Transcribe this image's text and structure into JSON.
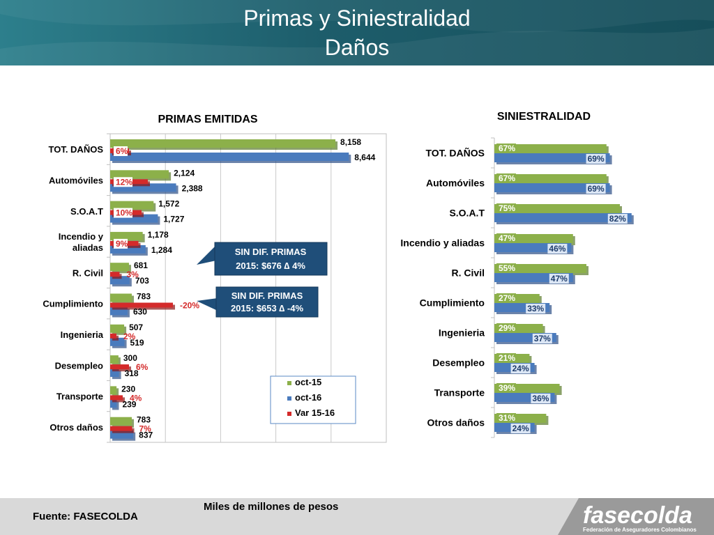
{
  "header": {
    "title_line1": "Primas y Siniestralidad",
    "title_line2": "Daños"
  },
  "colors": {
    "green": "#8cb04a",
    "blue": "#4a7bbd",
    "red": "#d42a2a",
    "header": "#1d5d6b",
    "callout": "#1f4e79"
  },
  "chart_data": [
    {
      "type": "bar",
      "orientation": "horizontal",
      "title": "PRIMAS EMITIDAS",
      "categories": [
        "TOT. DAÑOS",
        "Automóviles",
        "S.O.A.T",
        "Incendio y aliadas",
        "R. Civil",
        "Cumplimiento",
        "Ingenieria",
        "Desempleo",
        "Transporte",
        "Otros daños"
      ],
      "category_lines": [
        [
          "TOT. DAÑOS"
        ],
        [
          "Automóviles"
        ],
        [
          "S.O.A.T"
        ],
        [
          "Incendio y",
          "aliadas"
        ],
        [
          "R. Civil"
        ],
        [
          "Cumplimiento"
        ],
        [
          "Ingenieria"
        ],
        [
          "Desempleo"
        ],
        [
          "Transporte"
        ],
        [
          "Otros daños"
        ]
      ],
      "series": [
        {
          "name": "oct-15",
          "values": [
            8158,
            2124,
            1572,
            1178,
            681,
            783,
            507,
            300,
            230,
            783
          ],
          "labels": [
            "8,158",
            "2,124",
            "1,572",
            "1,178",
            "681",
            "783",
            "507",
            "300",
            "230",
            "783"
          ]
        },
        {
          "name": "oct-16",
          "values": [
            8644,
            2388,
            1727,
            1284,
            703,
            630,
            519,
            318,
            239,
            837
          ],
          "labels": [
            "8,644",
            "2,388",
            "1,727",
            "1,284",
            "703",
            "630",
            "519",
            "318",
            "239",
            "837"
          ]
        },
        {
          "name": "Var 15-16",
          "values": [
            6,
            12,
            10,
            9,
            3,
            -20,
            2,
            6,
            4,
            7
          ],
          "labels": [
            "6%",
            "12%",
            "10%",
            "9%",
            "3%",
            "-20%",
            "2%",
            "6%",
            "4%",
            "7%"
          ]
        }
      ],
      "xlim": [
        0,
        10000
      ],
      "grid": true,
      "legend": "bottom-right"
    },
    {
      "type": "bar",
      "orientation": "horizontal",
      "title": "SINIESTRALIDAD",
      "categories": [
        "TOT. DAÑOS",
        "Automóviles",
        "S.O.A.T",
        "Incendio y aliadas",
        "R. Civil",
        "Cumplimiento",
        "Ingenieria",
        "Desempleo",
        "Transporte",
        "Otros daños"
      ],
      "series": [
        {
          "name": "oct-15",
          "values": [
            67,
            67,
            75,
            47,
            55,
            27,
            29,
            21,
            39,
            31
          ],
          "labels": [
            "67%",
            "67%",
            "75%",
            "47%",
            "55%",
            "27%",
            "29%",
            "21%",
            "39%",
            "31%"
          ]
        },
        {
          "name": "oct-16",
          "values": [
            69,
            69,
            82,
            46,
            47,
            33,
            37,
            24,
            36,
            24
          ],
          "labels": [
            "69%",
            "69%",
            "82%",
            "46%",
            "47%",
            "33%",
            "37%",
            "24%",
            "36%",
            "24%"
          ]
        }
      ],
      "xlim": [
        0,
        100
      ]
    }
  ],
  "callouts": [
    {
      "line1": "SIN DIF. PRIMAS",
      "line2": "2015: $676   ∆ 4%"
    },
    {
      "line1": "SIN DIF. PRIMAS",
      "line2": "2015: $653   ∆ -4%"
    }
  ],
  "footer": {
    "units": "Miles de millones de pesos",
    "source": "Fuente: FASECOLDA",
    "logo_text": "fasecolda",
    "logo_subtitle": "Federación de Aseguradores Colombianos"
  }
}
